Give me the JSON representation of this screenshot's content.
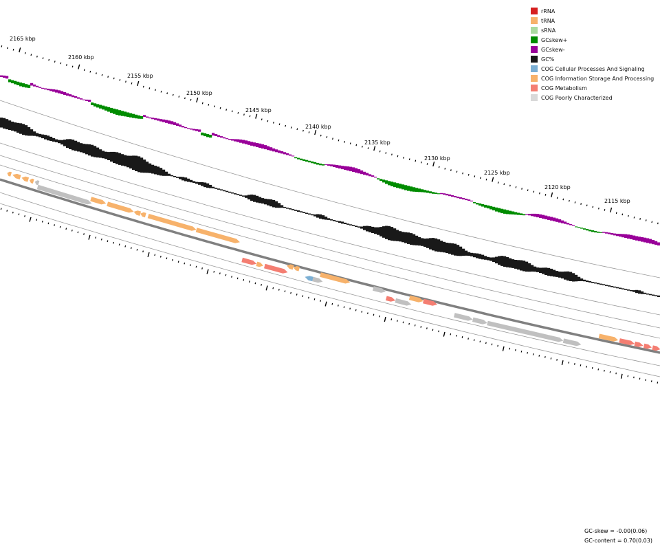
{
  "colors": {
    "gc_skew_plus": "#008c00",
    "gc_skew_minus": "#990099",
    "gc_content": "#191919",
    "backbone": "#808080",
    "ring_line": "#9a9a9a"
  },
  "scale_labels": [
    "2165 kbp",
    "2160 kbp",
    "2155 kbp",
    "2150 kbp",
    "2145 kbp",
    "2140 kbp",
    "2135 kbp",
    "2130 kbp",
    "2125 kbp",
    "2120 kbp",
    "2115 kbp"
  ],
  "legend": [
    {
      "label": "rRNA",
      "color": "#d61f1f"
    },
    {
      "label": "tRNA",
      "color": "#f7b26b"
    },
    {
      "label": "sRNA",
      "color": "#a9dba0"
    },
    {
      "label": "GCskew+",
      "color": "#008c00"
    },
    {
      "label": "GCskew-",
      "color": "#990099"
    },
    {
      "label": "GC%",
      "color": "#191919"
    },
    {
      "label": "COG Cellular Processes And Signaling",
      "color": "#7bafd4"
    },
    {
      "label": "COG Information Storage And Processing",
      "color": "#f7b26b"
    },
    {
      "label": "COG Metabolism",
      "color": "#f47e72"
    },
    {
      "label": "COG Poorly Characterized",
      "color": "#d9d9d9"
    }
  ],
  "stats": {
    "gc_skew": "GC-skew = -0.00(0.06)",
    "gc_content": "GC-content = 0.70(0.03)"
  },
  "features": [
    {
      "s": -0.004,
      "e": 0.0,
      "track": "fo",
      "c": "#f7b26b",
      "d": 1
    },
    {
      "s": 0.008,
      "e": 0.014,
      "track": "fo",
      "c": "#f7b26b",
      "d": -1
    },
    {
      "s": 0.016,
      "e": 0.028,
      "track": "fo",
      "c": "#f7b26b",
      "d": -1
    },
    {
      "s": 0.03,
      "e": 0.04,
      "track": "fo",
      "c": "#f7b26b",
      "d": -1
    },
    {
      "s": 0.042,
      "e": 0.048,
      "track": "fo",
      "c": "#f7b26b",
      "d": -1
    },
    {
      "s": 0.05,
      "e": 0.056,
      "track": "fo",
      "c": "#c0c0c0",
      "d": -1
    },
    {
      "s": 0.056,
      "e": 0.138,
      "track": "fi",
      "c": "#c0c0c0",
      "d": 1
    },
    {
      "s": 0.135,
      "e": 0.158,
      "track": "fo",
      "c": "#f7b26b",
      "d": 1
    },
    {
      "s": 0.16,
      "e": 0.2,
      "track": "fo",
      "c": "#f7b26b",
      "d": 1
    },
    {
      "s": 0.2,
      "e": 0.21,
      "track": "fo",
      "c": "#f7b26b",
      "d": -1
    },
    {
      "s": 0.21,
      "e": 0.218,
      "track": "fo",
      "c": "#f7b26b",
      "d": -1
    },
    {
      "s": 0.222,
      "e": 0.295,
      "track": "fo",
      "c": "#f7b26b",
      "d": 1
    },
    {
      "s": 0.295,
      "e": 0.361,
      "track": "fo",
      "c": "#f7b26b",
      "d": 1
    },
    {
      "s": 0.371,
      "e": 0.393,
      "track": "ro",
      "c": "#f47e72",
      "d": 1
    },
    {
      "s": 0.393,
      "e": 0.403,
      "track": "ro",
      "c": "#f7b26b",
      "d": 1
    },
    {
      "s": 0.405,
      "e": 0.44,
      "track": "ro",
      "c": "#f47e72",
      "d": 1
    },
    {
      "s": 0.436,
      "e": 0.446,
      "track": "ri",
      "c": "#f7b26b",
      "d": -1
    },
    {
      "s": 0.446,
      "e": 0.455,
      "track": "ri",
      "c": "#f7b26b",
      "d": -1
    },
    {
      "s": 0.466,
      "e": 0.478,
      "track": "ro",
      "c": "#7bafd4",
      "d": -1
    },
    {
      "s": 0.478,
      "e": 0.493,
      "track": "ro",
      "c": "#c0c0c0",
      "d": 1
    },
    {
      "s": 0.487,
      "e": 0.532,
      "track": "ri",
      "c": "#f7b26b",
      "d": 1
    },
    {
      "s": 0.567,
      "e": 0.586,
      "track": "ri",
      "c": "#c0c0c0",
      "d": 1
    },
    {
      "s": 0.589,
      "e": 0.603,
      "track": "ro",
      "c": "#f47e72",
      "d": 1
    },
    {
      "s": 0.603,
      "e": 0.627,
      "track": "ro",
      "c": "#c0c0c0",
      "d": 1
    },
    {
      "s": 0.622,
      "e": 0.643,
      "track": "ri",
      "c": "#f7b26b",
      "d": 1
    },
    {
      "s": 0.643,
      "e": 0.664,
      "track": "ri",
      "c": "#f47e72",
      "d": 1
    },
    {
      "s": 0.692,
      "e": 0.72,
      "track": "ro",
      "c": "#c0c0c0",
      "d": 1
    },
    {
      "s": 0.72,
      "e": 0.742,
      "track": "ro",
      "c": "#c0c0c0",
      "d": 1
    },
    {
      "s": 0.742,
      "e": 0.857,
      "track": "ro",
      "c": "#c0c0c0",
      "d": 1
    },
    {
      "s": 0.857,
      "e": 0.884,
      "track": "ro",
      "c": "#c0c0c0",
      "d": 1
    },
    {
      "s": 0.907,
      "e": 0.936,
      "track": "fi",
      "c": "#f7b26b",
      "d": 1
    },
    {
      "s": 0.938,
      "e": 0.961,
      "track": "fi",
      "c": "#f47e72",
      "d": 1
    },
    {
      "s": 0.961,
      "e": 0.974,
      "track": "fi",
      "c": "#f47e72",
      "d": 1
    },
    {
      "s": 0.975,
      "e": 0.987,
      "track": "fi",
      "c": "#f47e72",
      "d": 1
    },
    {
      "s": 0.988,
      "e": 1.0,
      "track": "fi",
      "c": "#f47e72",
      "d": 1
    }
  ]
}
